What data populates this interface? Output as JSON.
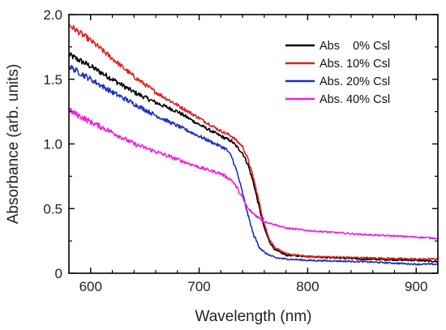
{
  "chart_data": {
    "type": "line",
    "title": "",
    "xlabel": "Wavelength (nm)",
    "ylabel": "Absorbance (arb. units)",
    "xlim": [
      580,
      920
    ],
    "ylim": [
      0,
      2.0
    ],
    "x_ticks": [
      600,
      700,
      800,
      900
    ],
    "x_tick_labels": [
      "600",
      "700",
      "800",
      "900"
    ],
    "y_ticks": [
      0,
      0.5,
      1.0,
      1.5,
      2.0
    ],
    "y_tick_labels": [
      "0",
      "0.5",
      "1.0",
      "1.5",
      "2.0"
    ],
    "grid": false,
    "legend_position": "top-right",
    "series": [
      {
        "name": "Abs    0% Csl",
        "color": "#000000",
        "x": [
          580,
          600,
          620,
          640,
          660,
          680,
          700,
          720,
          730,
          740,
          745,
          750,
          755,
          760,
          765,
          770,
          780,
          800,
          850,
          900,
          920
        ],
        "y": [
          1.69,
          1.6,
          1.5,
          1.4,
          1.32,
          1.25,
          1.15,
          1.06,
          1.02,
          0.93,
          0.84,
          0.7,
          0.52,
          0.35,
          0.24,
          0.18,
          0.14,
          0.13,
          0.11,
          0.1,
          0.09
        ]
      },
      {
        "name": "Abs. 10% Csl",
        "color": "#e02020",
        "x": [
          580,
          600,
          620,
          640,
          660,
          680,
          700,
          720,
          730,
          740,
          745,
          750,
          755,
          760,
          765,
          770,
          780,
          800,
          850,
          900,
          920
        ],
        "y": [
          1.92,
          1.8,
          1.66,
          1.52,
          1.4,
          1.3,
          1.2,
          1.1,
          1.06,
          0.98,
          0.88,
          0.74,
          0.56,
          0.38,
          0.26,
          0.2,
          0.15,
          0.13,
          0.12,
          0.11,
          0.11
        ]
      },
      {
        "name": "Abs. 20% Csl",
        "color": "#1f2fbf",
        "x": [
          580,
          600,
          620,
          640,
          660,
          680,
          700,
          715,
          725,
          730,
          735,
          740,
          745,
          750,
          755,
          760,
          770,
          780,
          800,
          850,
          900,
          920
        ],
        "y": [
          1.6,
          1.5,
          1.4,
          1.31,
          1.22,
          1.14,
          1.06,
          1.0,
          0.96,
          0.9,
          0.78,
          0.62,
          0.45,
          0.3,
          0.21,
          0.16,
          0.12,
          0.11,
          0.1,
          0.09,
          0.07,
          0.07
        ]
      },
      {
        "name": "Abs. 40% Csl",
        "color": "#ee22dd",
        "x": [
          580,
          600,
          620,
          640,
          660,
          680,
          700,
          720,
          730,
          735,
          740,
          745,
          750,
          760,
          780,
          800,
          850,
          900,
          920
        ],
        "y": [
          1.26,
          1.17,
          1.09,
          1.0,
          0.94,
          0.88,
          0.82,
          0.77,
          0.72,
          0.66,
          0.58,
          0.5,
          0.46,
          0.4,
          0.35,
          0.33,
          0.3,
          0.28,
          0.27
        ]
      }
    ]
  }
}
